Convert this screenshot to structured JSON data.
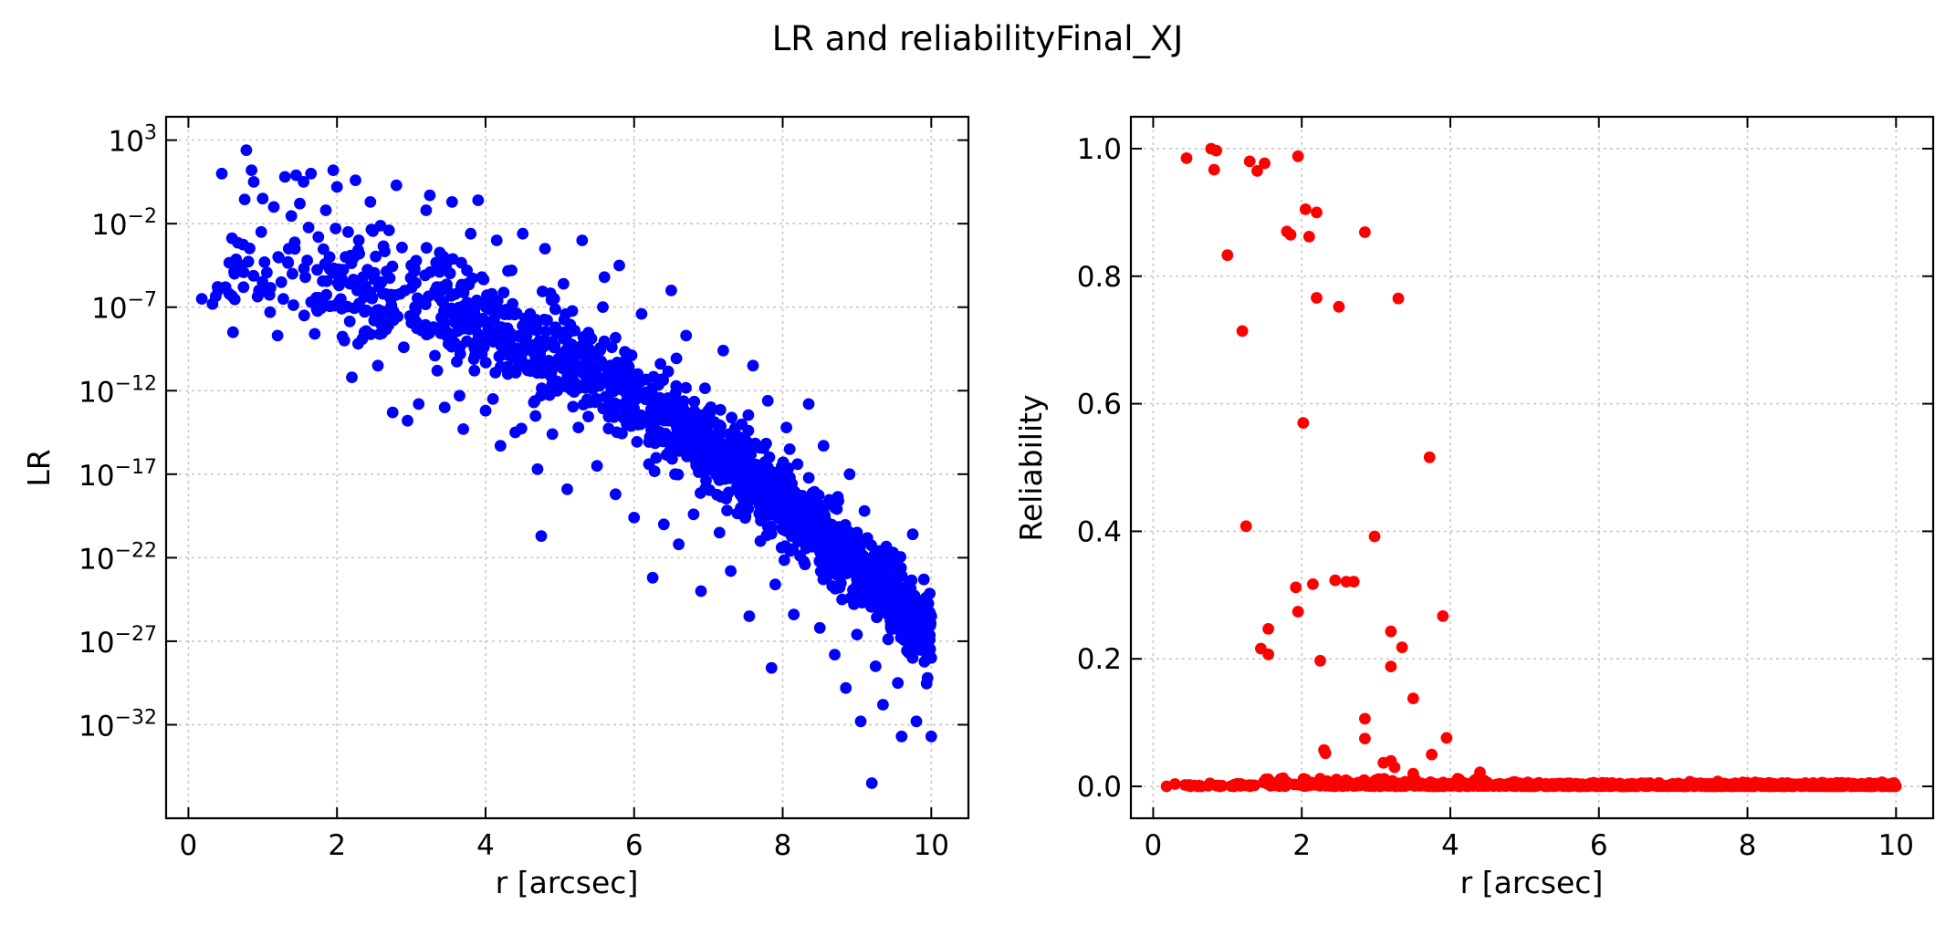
{
  "suptitle": "LR and reliabilityFinal_XJ",
  "chart_data": [
    {
      "type": "scatter",
      "xlabel": "r [arcsec]",
      "ylabel": "LR",
      "yscale": "log",
      "xlim": [
        -0.3,
        10.5
      ],
      "ylim_log10": [
        -37.6,
        4.4
      ],
      "xticks": [
        0,
        2,
        4,
        6,
        8,
        10
      ],
      "xtick_labels": [
        "0",
        "2",
        "4",
        "6",
        "8",
        "10"
      ],
      "yticks_log10": [
        3,
        -2,
        -7,
        -12,
        -17,
        -22,
        -27,
        -32
      ],
      "ytick_labels": [
        {
          "base": "10",
          "exp": "3"
        },
        {
          "base": "10",
          "exp": "−2"
        },
        {
          "base": "10",
          "exp": "−7"
        },
        {
          "base": "10",
          "exp": "−12"
        },
        {
          "base": "10",
          "exp": "−17"
        },
        {
          "base": "10",
          "exp": "−22"
        },
        {
          "base": "10",
          "exp": "−27"
        },
        {
          "base": "10",
          "exp": "−32"
        }
      ],
      "grid": true,
      "color": "#0000ff",
      "n_points": 1600,
      "points_log10": [
        [
          0.18,
          -6.5
        ],
        [
          0.4,
          -6.0
        ],
        [
          0.45,
          1.0
        ],
        [
          0.5,
          -5.8
        ],
        [
          0.55,
          -6.2
        ],
        [
          0.6,
          -8.5
        ],
        [
          0.62,
          -5.0
        ],
        [
          0.7,
          -4.5
        ],
        [
          0.78,
          2.4
        ],
        [
          0.85,
          1.2
        ],
        [
          0.88,
          0.5
        ],
        [
          0.95,
          -6.0
        ],
        [
          0.98,
          -2.5
        ],
        [
          1.0,
          -0.5
        ],
        [
          1.1,
          -7.3
        ],
        [
          1.15,
          -1.0
        ],
        [
          1.2,
          -8.7
        ],
        [
          1.25,
          -5.5
        ],
        [
          1.3,
          0.8
        ],
        [
          1.35,
          -3.5
        ],
        [
          1.4,
          -5.0
        ],
        [
          1.45,
          0.9
        ],
        [
          1.5,
          -0.8
        ],
        [
          1.55,
          0.5
        ],
        [
          1.6,
          -4.2
        ],
        [
          1.65,
          1.0
        ],
        [
          1.7,
          -8.6
        ],
        [
          1.75,
          -2.8
        ],
        [
          1.8,
          -6.5
        ],
        [
          1.85,
          -1.2
        ],
        [
          1.9,
          -4.0
        ],
        [
          1.95,
          1.2
        ],
        [
          2.0,
          0.2
        ],
        [
          2.05,
          -6.8
        ],
        [
          2.1,
          -9.0
        ],
        [
          2.15,
          -2.5
        ],
        [
          2.2,
          -11.2
        ],
        [
          2.25,
          0.6
        ],
        [
          2.3,
          -3.8
        ],
        [
          2.35,
          -5.2
        ],
        [
          2.45,
          -0.7
        ],
        [
          2.5,
          -7.8
        ],
        [
          2.55,
          -10.5
        ],
        [
          2.6,
          -5.5
        ],
        [
          2.65,
          -8.2
        ],
        [
          2.7,
          -2.4
        ],
        [
          2.75,
          -13.3
        ],
        [
          2.8,
          0.3
        ],
        [
          2.85,
          -6.2
        ],
        [
          2.9,
          -9.4
        ],
        [
          2.95,
          -13.8
        ],
        [
          3.0,
          -4.5
        ],
        [
          3.05,
          -7.0
        ],
        [
          3.1,
          -12.8
        ],
        [
          3.2,
          -1.2
        ],
        [
          3.25,
          -0.3
        ],
        [
          3.3,
          -8.2
        ],
        [
          3.35,
          -10.8
        ],
        [
          3.4,
          -5.8
        ],
        [
          3.45,
          -13.0
        ],
        [
          3.5,
          -9.2
        ],
        [
          3.55,
          -0.7
        ],
        [
          3.6,
          -7.5
        ],
        [
          3.65,
          -12.3
        ],
        [
          3.7,
          -14.3
        ],
        [
          3.75,
          -4.8
        ],
        [
          3.8,
          -2.6
        ],
        [
          3.85,
          -10.8
        ],
        [
          3.9,
          -0.6
        ],
        [
          3.95,
          -9.8
        ],
        [
          4.0,
          -13.2
        ],
        [
          4.05,
          -6.7
        ],
        [
          4.1,
          -12.5
        ],
        [
          4.15,
          -3.0
        ],
        [
          4.2,
          -15.3
        ],
        [
          4.25,
          -8.8
        ],
        [
          4.3,
          -11.0
        ],
        [
          4.35,
          -4.8
        ],
        [
          4.4,
          -14.5
        ],
        [
          4.5,
          -2.6
        ],
        [
          4.6,
          -7.4
        ],
        [
          4.65,
          -12.7
        ],
        [
          4.7,
          -16.7
        ],
        [
          4.75,
          -20.7
        ],
        [
          4.8,
          -3.5
        ],
        [
          4.9,
          -14.6
        ],
        [
          5.0,
          -10.3
        ],
        [
          5.05,
          -5.6
        ],
        [
          5.1,
          -17.9
        ],
        [
          5.2,
          -8.4
        ],
        [
          5.25,
          -14.2
        ],
        [
          5.3,
          -3.0
        ],
        [
          5.4,
          -12.7
        ],
        [
          5.5,
          -16.5
        ],
        [
          5.6,
          -5.2
        ],
        [
          5.7,
          -9.4
        ],
        [
          5.75,
          -18.2
        ],
        [
          5.8,
          -4.5
        ],
        [
          5.9,
          -14.0
        ],
        [
          6.0,
          -19.6
        ],
        [
          6.05,
          -11.0
        ],
        [
          6.1,
          -7.4
        ],
        [
          6.2,
          -16.4
        ],
        [
          6.25,
          -23.2
        ],
        [
          6.3,
          -13.8
        ],
        [
          6.4,
          -20.0
        ],
        [
          6.5,
          -6.0
        ],
        [
          6.55,
          -17.0
        ],
        [
          6.6,
          -21.2
        ],
        [
          6.7,
          -8.7
        ],
        [
          6.8,
          -19.4
        ],
        [
          6.9,
          -24.0
        ],
        [
          7.0,
          -13.3
        ],
        [
          7.1,
          -17.0
        ],
        [
          7.15,
          -20.5
        ],
        [
          7.2,
          -9.6
        ],
        [
          7.3,
          -22.8
        ],
        [
          7.4,
          -15.8
        ],
        [
          7.5,
          -19.5
        ],
        [
          7.55,
          -25.5
        ],
        [
          7.6,
          -10.5
        ],
        [
          7.7,
          -21.0
        ],
        [
          7.75,
          -17.3
        ],
        [
          7.8,
          -12.6
        ],
        [
          7.85,
          -28.6
        ],
        [
          7.9,
          -23.6
        ],
        [
          8.0,
          -18.9
        ],
        [
          8.05,
          -14.2
        ],
        [
          8.1,
          -21.6
        ],
        [
          8.15,
          -25.4
        ],
        [
          8.2,
          -16.4
        ],
        [
          8.3,
          -22.4
        ],
        [
          8.35,
          -12.8
        ],
        [
          8.4,
          -19.5
        ],
        [
          8.5,
          -26.2
        ],
        [
          8.55,
          -15.3
        ],
        [
          8.6,
          -23.1
        ],
        [
          8.7,
          -27.8
        ],
        [
          8.75,
          -18.6
        ],
        [
          8.8,
          -24.5
        ],
        [
          8.85,
          -29.8
        ],
        [
          8.9,
          -17.0
        ],
        [
          8.95,
          -22.0
        ],
        [
          9.0,
          -26.6
        ],
        [
          9.05,
          -31.8
        ],
        [
          9.1,
          -19.2
        ],
        [
          9.15,
          -24.2
        ],
        [
          9.2,
          -35.5
        ],
        [
          9.25,
          -28.5
        ],
        [
          9.3,
          -21.6
        ],
        [
          9.35,
          -30.8
        ],
        [
          9.4,
          -25.3
        ],
        [
          9.5,
          -22.6
        ],
        [
          9.55,
          -29.5
        ],
        [
          9.6,
          -32.7
        ],
        [
          9.65,
          -24.8
        ],
        [
          9.7,
          -27.7
        ],
        [
          9.75,
          -20.6
        ],
        [
          9.8,
          -31.8
        ],
        [
          9.85,
          -26.0
        ],
        [
          9.9,
          -23.3
        ],
        [
          9.95,
          -29.2
        ],
        [
          10.0,
          -32.7
        ],
        [
          10.0,
          -25.5
        ],
        [
          10.0,
          -28.0
        ]
      ]
    },
    {
      "type": "scatter",
      "xlabel": "r [arcsec]",
      "ylabel": "Reliability",
      "xlim": [
        -0.3,
        10.5
      ],
      "ylim": [
        -0.05,
        1.05
      ],
      "xticks": [
        0,
        2,
        4,
        6,
        8,
        10
      ],
      "xtick_labels": [
        "0",
        "2",
        "4",
        "6",
        "8",
        "10"
      ],
      "yticks": [
        0.0,
        0.2,
        0.4,
        0.6,
        0.8,
        1.0
      ],
      "ytick_labels": [
        "0.0",
        "0.2",
        "0.4",
        "0.6",
        "0.8",
        "1.0"
      ],
      "grid": true,
      "color": "#ff0000",
      "points": [
        [
          0.45,
          0.985
        ],
        [
          0.78,
          1.0
        ],
        [
          0.85,
          0.997
        ],
        [
          0.82,
          0.967
        ],
        [
          1.0,
          0.833
        ],
        [
          1.3,
          0.98
        ],
        [
          1.4,
          0.965
        ],
        [
          1.5,
          0.977
        ],
        [
          1.95,
          0.988
        ],
        [
          1.8,
          0.87
        ],
        [
          1.85,
          0.865
        ],
        [
          2.05,
          0.905
        ],
        [
          2.1,
          0.862
        ],
        [
          2.2,
          0.9
        ],
        [
          2.85,
          0.869
        ],
        [
          1.2,
          0.714
        ],
        [
          2.2,
          0.766
        ],
        [
          2.5,
          0.752
        ],
        [
          3.3,
          0.765
        ],
        [
          2.02,
          0.57
        ],
        [
          3.72,
          0.516
        ],
        [
          1.25,
          0.408
        ],
        [
          2.98,
          0.392
        ],
        [
          1.92,
          0.312
        ],
        [
          2.15,
          0.317
        ],
        [
          2.45,
          0.323
        ],
        [
          2.6,
          0.321
        ],
        [
          2.7,
          0.321
        ],
        [
          1.95,
          0.274
        ],
        [
          3.9,
          0.267
        ],
        [
          1.55,
          0.247
        ],
        [
          1.45,
          0.216
        ],
        [
          1.55,
          0.207
        ],
        [
          2.25,
          0.197
        ],
        [
          3.2,
          0.243
        ],
        [
          3.35,
          0.218
        ],
        [
          3.2,
          0.188
        ],
        [
          3.5,
          0.138
        ],
        [
          2.85,
          0.106
        ],
        [
          2.85,
          0.075
        ],
        [
          3.95,
          0.076
        ],
        [
          2.3,
          0.057
        ],
        [
          2.32,
          0.052
        ],
        [
          3.1,
          0.037
        ],
        [
          3.2,
          0.04
        ],
        [
          3.75,
          0.05
        ],
        [
          3.25,
          0.03
        ],
        [
          3.5,
          0.02
        ],
        [
          4.4,
          0.022
        ],
        [
          1.75,
          0.013
        ],
        [
          3.0,
          0.01
        ],
        [
          4.1,
          0.012
        ],
        [
          0.18,
          0.0
        ],
        [
          0.5,
          0.0
        ],
        [
          0.65,
          0.0
        ],
        [
          0.9,
          0.0
        ]
      ]
    }
  ]
}
